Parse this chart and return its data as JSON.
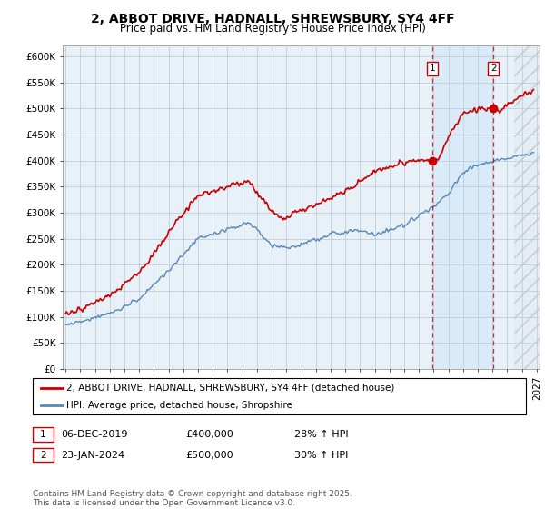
{
  "title": "2, ABBOT DRIVE, HADNALL, SHREWSBURY, SY4 4FF",
  "subtitle": "Price paid vs. HM Land Registry's House Price Index (HPI)",
  "ylim": [
    0,
    620000
  ],
  "yticks": [
    0,
    50000,
    100000,
    150000,
    200000,
    250000,
    300000,
    350000,
    400000,
    450000,
    500000,
    550000,
    600000
  ],
  "ytick_labels": [
    "£0",
    "£50K",
    "£100K",
    "£150K",
    "£200K",
    "£250K",
    "£300K",
    "£350K",
    "£400K",
    "£450K",
    "£500K",
    "£550K",
    "£600K"
  ],
  "xlim_start": 1994.8,
  "xlim_end": 2027.2,
  "marker1_x": 2019.92,
  "marker1_y": 400000,
  "marker1_label": "1",
  "marker2_x": 2024.07,
  "marker2_y": 500000,
  "marker2_label": "2",
  "vline1_x": 2019.92,
  "vline2_x": 2024.07,
  "hatch_start": 2025.5,
  "shade_color": "#d0e8f8",
  "hatch_color": "#c8c8c8",
  "annotation1_date": "06-DEC-2019",
  "annotation1_price": "£400,000",
  "annotation1_hpi": "28% ↑ HPI",
  "annotation1_num": "1",
  "annotation2_date": "23-JAN-2024",
  "annotation2_price": "£500,000",
  "annotation2_hpi": "30% ↑ HPI",
  "annotation2_num": "2",
  "red_line_color": "#cc0000",
  "blue_line_color": "#5588bb",
  "vline_color": "#cc0000",
  "grid_color": "#b8c8d8",
  "plot_bg_color": "#e8f0f8",
  "background_color": "#ffffff",
  "legend_label_red": "2, ABBOT DRIVE, HADNALL, SHREWSBURY, SY4 4FF (detached house)",
  "legend_label_blue": "HPI: Average price, detached house, Shropshire",
  "footer": "Contains HM Land Registry data © Crown copyright and database right 2025.\nThis data is licensed under the Open Government Licence v3.0.",
  "title_fontsize": 10,
  "subtitle_fontsize": 8.5,
  "tick_fontsize": 7.5,
  "legend_fontsize": 7.5,
  "annotation_fontsize": 8,
  "footer_fontsize": 6.5
}
